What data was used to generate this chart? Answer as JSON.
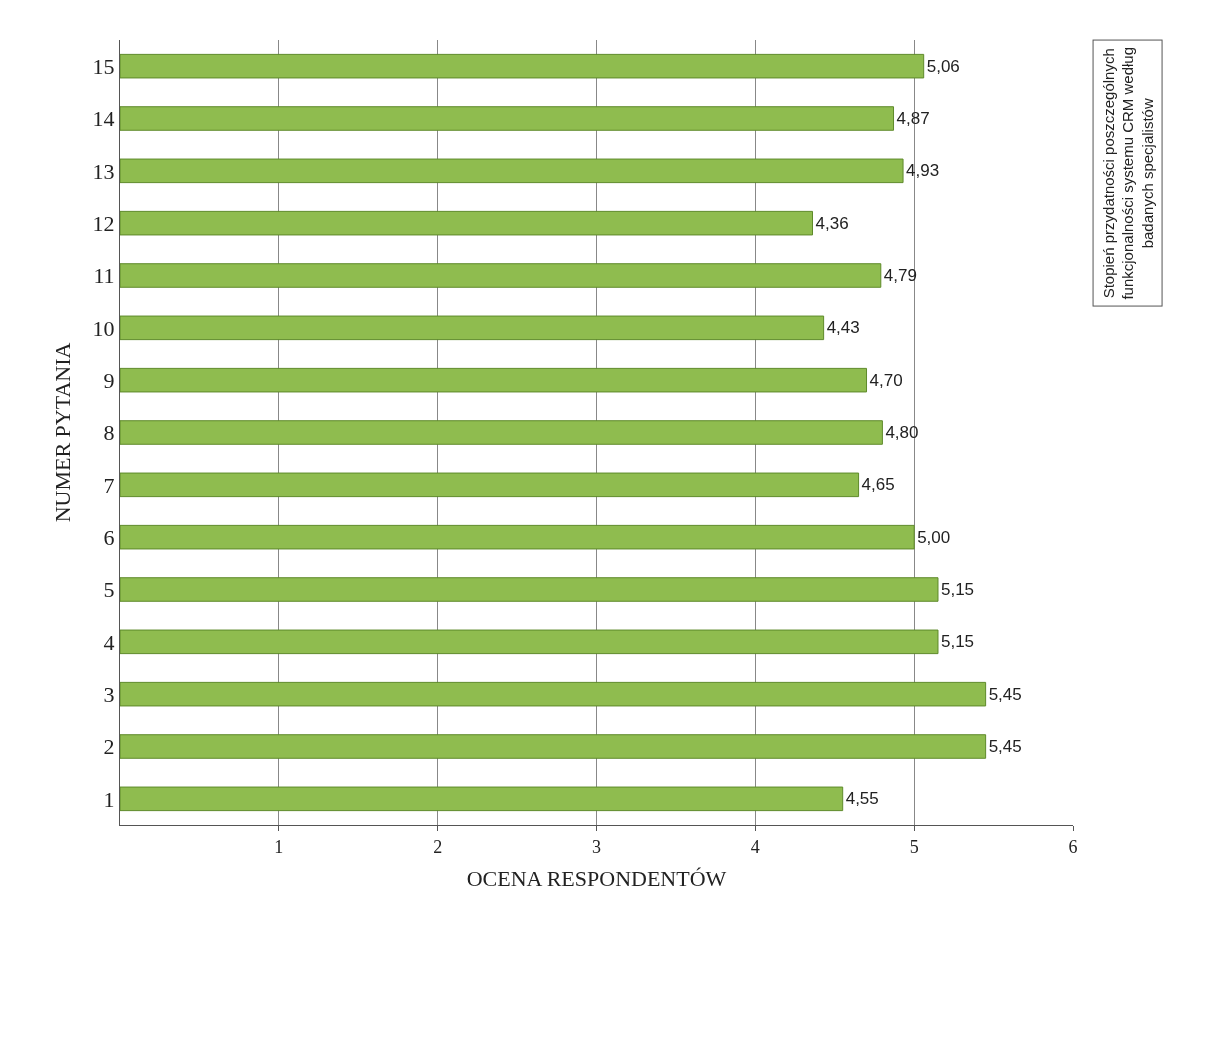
{
  "chart_data": {
    "type": "bar",
    "orientation": "horizontal",
    "categories": [
      "15",
      "14",
      "13",
      "12",
      "11",
      "10",
      "9",
      "8",
      "7",
      "6",
      "5",
      "4",
      "3",
      "2",
      "1"
    ],
    "values": [
      5.06,
      4.87,
      4.93,
      4.36,
      4.79,
      4.43,
      4.7,
      4.8,
      4.65,
      5.0,
      5.15,
      5.15,
      5.45,
      5.45,
      4.55
    ],
    "value_labels": [
      "5,06",
      "4,87",
      "4,93",
      "4,36",
      "4,79",
      "4,43",
      "4,70",
      "4,80",
      "4,65",
      "5,00",
      "5,15",
      "5,15",
      "5,45",
      "5,45",
      "4,55"
    ],
    "color": "#8fbc4f",
    "xlim": [
      0,
      6
    ],
    "xticks": [
      1,
      2,
      3,
      4,
      5,
      6
    ],
    "xlabel": "OCENA RESPONDENTÓW",
    "ylabel": "NUMER PYTANIA",
    "annotations": [
      "Stopień przydatności poszczególnych funkcjonalności systemu CRM według badanych specjalistów"
    ],
    "grid": "x"
  }
}
